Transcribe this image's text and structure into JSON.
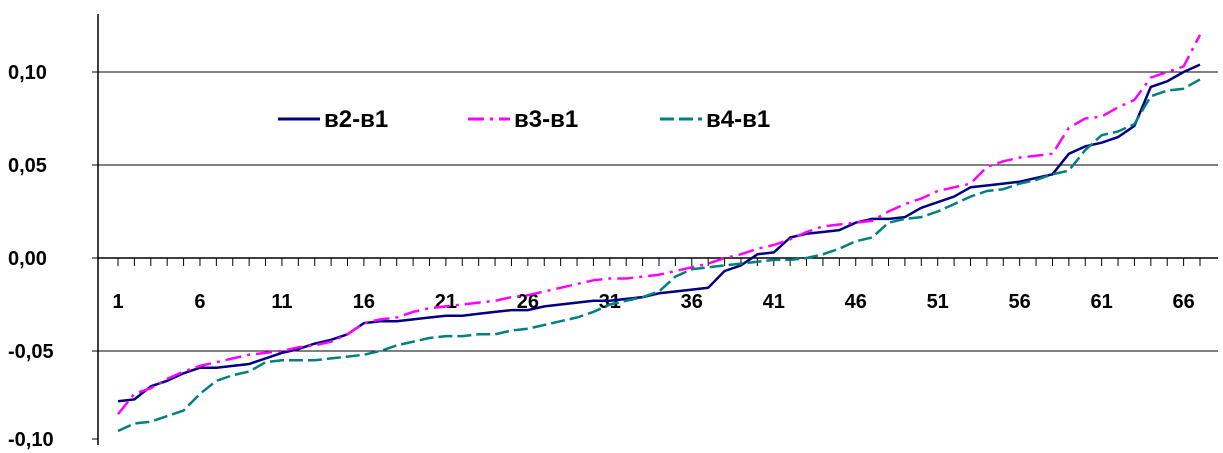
{
  "chart_data": {
    "type": "line",
    "title": "",
    "xlabel": "",
    "ylabel": "",
    "x_tick_labels": [
      "1",
      "6",
      "11",
      "16",
      "21",
      "26",
      "31",
      "36",
      "41",
      "46",
      "51",
      "56",
      "61",
      "66"
    ],
    "x_tick_positions": [
      1,
      6,
      11,
      16,
      21,
      26,
      31,
      36,
      41,
      46,
      51,
      56,
      61,
      66
    ],
    "y_tick_labels": [
      "0,10",
      "0,05",
      "0,00",
      "-0,05",
      "-0,10"
    ],
    "y_tick_values": [
      0.1,
      0.05,
      0.0,
      -0.05,
      -0.1
    ],
    "xlim": [
      1,
      67
    ],
    "ylim": [
      -0.1,
      0.13
    ],
    "grid": "horizontal",
    "legend_position": "top-left",
    "series": [
      {
        "name": "в2-в1",
        "color": "#000080",
        "dash": "solid",
        "values": [
          -0.077,
          -0.076,
          -0.069,
          -0.066,
          -0.062,
          -0.059,
          -0.059,
          -0.058,
          -0.057,
          -0.054,
          -0.051,
          -0.049,
          -0.046,
          -0.044,
          -0.041,
          -0.035,
          -0.034,
          -0.034,
          -0.033,
          -0.032,
          -0.031,
          -0.031,
          -0.03,
          -0.029,
          -0.028,
          -0.028,
          -0.026,
          -0.025,
          -0.024,
          -0.023,
          -0.023,
          -0.022,
          -0.021,
          -0.019,
          -0.018,
          -0.017,
          -0.016,
          -0.007,
          -0.004,
          0.002,
          0.003,
          0.011,
          0.013,
          0.014,
          0.015,
          0.019,
          0.021,
          0.021,
          0.022,
          0.027,
          0.03,
          0.033,
          0.038,
          0.039,
          0.04,
          0.041,
          0.043,
          0.045,
          0.056,
          0.06,
          0.062,
          0.065,
          0.071,
          0.092,
          0.095,
          0.1,
          0.104
        ]
      },
      {
        "name": "в3-в1",
        "color": "#ff00ff",
        "dash": "dash-dot",
        "values": [
          -0.084,
          -0.073,
          -0.07,
          -0.065,
          -0.061,
          -0.058,
          -0.056,
          -0.054,
          -0.052,
          -0.051,
          -0.05,
          -0.048,
          -0.047,
          -0.045,
          -0.041,
          -0.035,
          -0.033,
          -0.032,
          -0.029,
          -0.027,
          -0.026,
          -0.025,
          -0.024,
          -0.023,
          -0.021,
          -0.02,
          -0.018,
          -0.016,
          -0.014,
          -0.012,
          -0.011,
          -0.011,
          -0.01,
          -0.009,
          -0.007,
          -0.005,
          -0.003,
          0.0,
          0.002,
          0.005,
          0.007,
          0.01,
          0.014,
          0.017,
          0.018,
          0.019,
          0.02,
          0.025,
          0.029,
          0.032,
          0.036,
          0.038,
          0.04,
          0.049,
          0.052,
          0.054,
          0.055,
          0.056,
          0.07,
          0.075,
          0.076,
          0.081,
          0.085,
          0.097,
          0.1,
          0.103,
          0.12
        ]
      },
      {
        "name": "в4-в1",
        "color": "#008080",
        "dash": "dash",
        "values": [
          -0.093,
          -0.089,
          -0.088,
          -0.085,
          -0.082,
          -0.073,
          -0.066,
          -0.063,
          -0.061,
          -0.056,
          -0.055,
          -0.055,
          -0.055,
          -0.054,
          -0.053,
          -0.052,
          -0.05,
          -0.047,
          -0.045,
          -0.043,
          -0.042,
          -0.042,
          -0.041,
          -0.041,
          -0.039,
          -0.038,
          -0.036,
          -0.034,
          -0.032,
          -0.029,
          -0.025,
          -0.023,
          -0.021,
          -0.018,
          -0.01,
          -0.006,
          -0.005,
          -0.004,
          -0.003,
          -0.002,
          -0.001,
          -0.001,
          0.0,
          0.002,
          0.005,
          0.009,
          0.011,
          0.019,
          0.021,
          0.022,
          0.025,
          0.029,
          0.033,
          0.036,
          0.037,
          0.04,
          0.042,
          0.045,
          0.047,
          0.058,
          0.066,
          0.068,
          0.072,
          0.087,
          0.09,
          0.091,
          0.096
        ]
      }
    ]
  }
}
